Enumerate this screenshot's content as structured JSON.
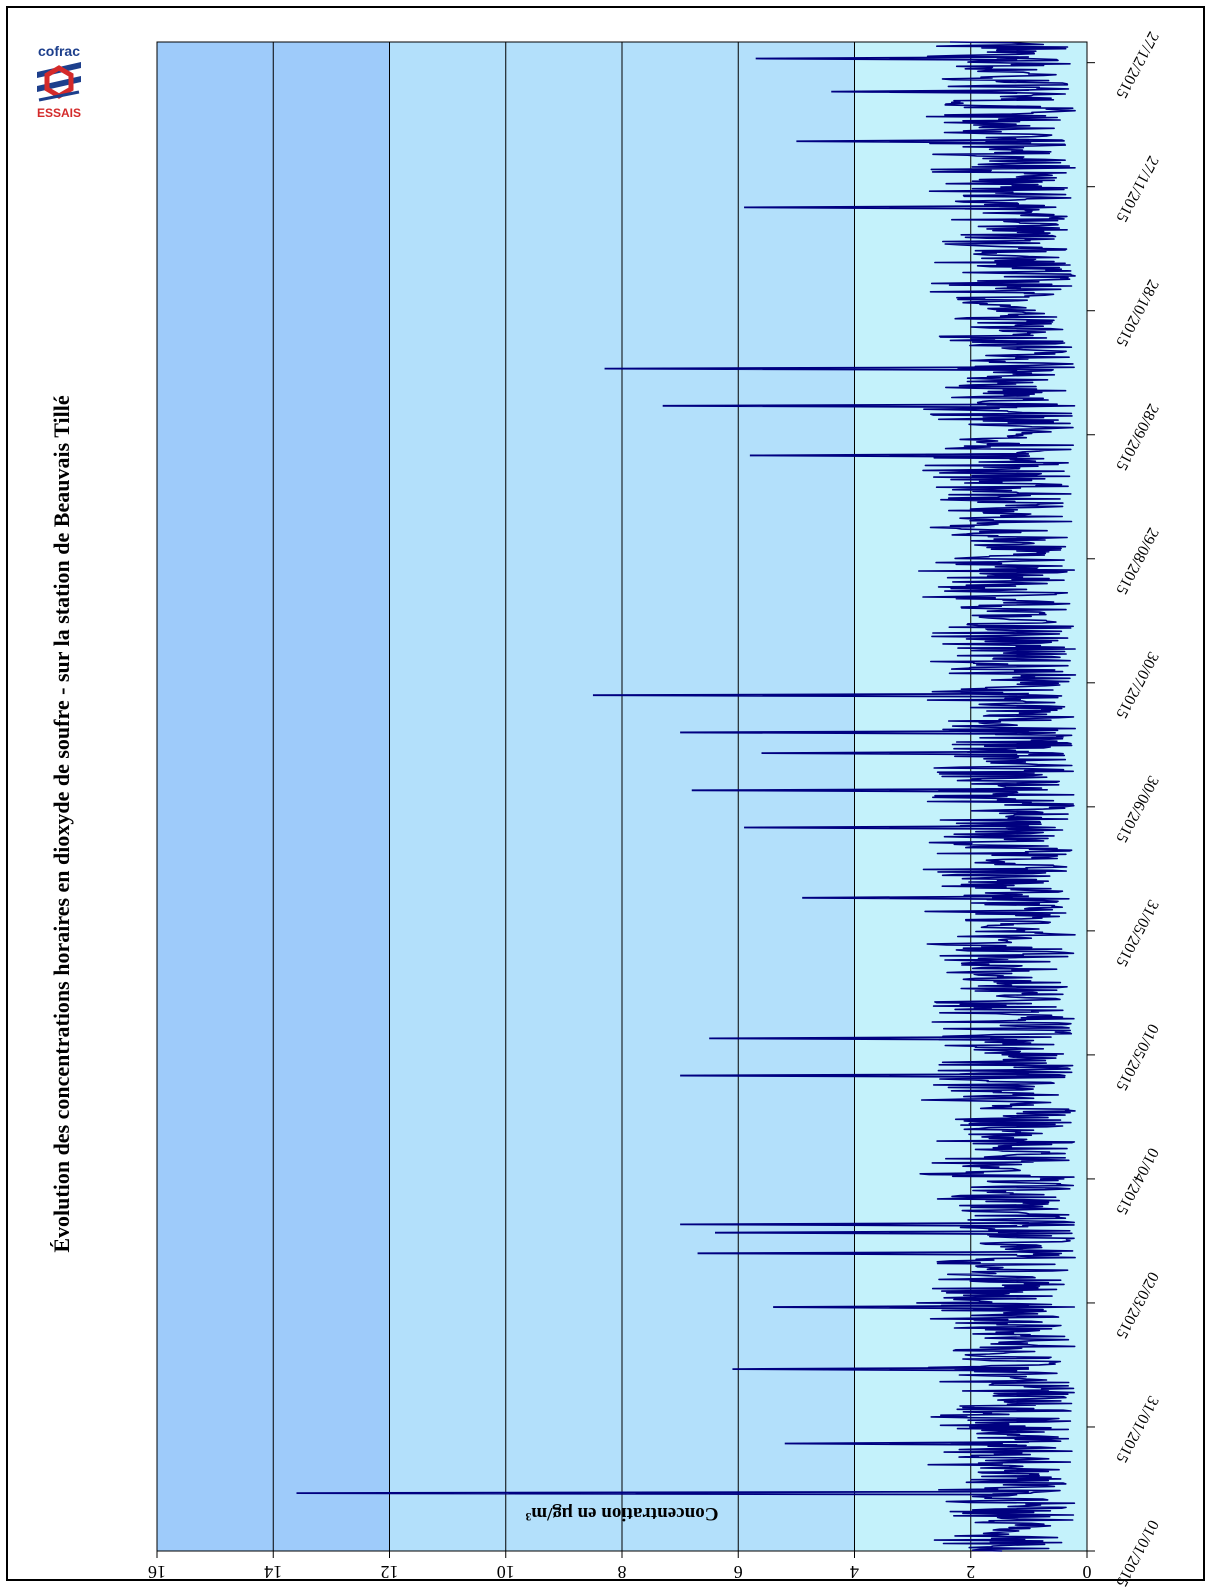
{
  "chart_data": {
    "type": "line",
    "title": "Évolution des concentrations horaires en dioxyde de soufre - sur la station de Beauvais Tillé",
    "ylabel": "Concentration en µg/m³",
    "xlabel": "",
    "ylim": [
      0,
      16
    ],
    "yticks": [
      0,
      2,
      4,
      6,
      8,
      10,
      12,
      14,
      16
    ],
    "xlim": [
      "2015-01-01",
      "2016-01-01"
    ],
    "x_tick_labels": [
      "01/01/2015",
      "31/01/2015",
      "02/03/2015",
      "01/04/2015",
      "01/05/2015",
      "31/05/2015",
      "30/06/2015",
      "30/07/2015",
      "29/08/2015",
      "28/09/2015",
      "28/10/2015",
      "27/11/2015",
      "27/12/2015"
    ],
    "x_tick_days": [
      0,
      30,
      60,
      90,
      120,
      150,
      180,
      210,
      240,
      270,
      300,
      330,
      360
    ],
    "grid": true,
    "legend": "none",
    "colors": {
      "line": "#000080",
      "band_high": "#9ecbfa",
      "band_mid": "#b3e0fb",
      "band_low": "#c4f2fb",
      "gridline": "#000000"
    },
    "series": [
      {
        "name": "",
        "frequency": "hourly",
        "baseline_range": [
          0,
          3
        ],
        "peaks": [
          {
            "date": "2015-01-15",
            "value": 13.6
          },
          {
            "date": "2015-01-27",
            "value": 5.2
          },
          {
            "date": "2015-02-14",
            "value": 6.1
          },
          {
            "date": "2015-03-01",
            "value": 5.4
          },
          {
            "date": "2015-03-14",
            "value": 6.7
          },
          {
            "date": "2015-03-21",
            "value": 7.0
          },
          {
            "date": "2015-03-19",
            "value": 6.4
          },
          {
            "date": "2015-04-26",
            "value": 7.0
          },
          {
            "date": "2015-05-05",
            "value": 6.5
          },
          {
            "date": "2015-06-08",
            "value": 4.9
          },
          {
            "date": "2015-06-25",
            "value": 5.9
          },
          {
            "date": "2015-07-04",
            "value": 6.8
          },
          {
            "date": "2015-07-13",
            "value": 5.6
          },
          {
            "date": "2015-07-18",
            "value": 7.0
          },
          {
            "date": "2015-07-27",
            "value": 8.5
          },
          {
            "date": "2015-09-23",
            "value": 5.8
          },
          {
            "date": "2015-10-05",
            "value": 7.3
          },
          {
            "date": "2015-10-14",
            "value": 8.3
          },
          {
            "date": "2015-11-22",
            "value": 5.9
          },
          {
            "date": "2015-12-08",
            "value": 5.0
          },
          {
            "date": "2015-12-20",
            "value": 4.4
          },
          {
            "date": "2015-12-28",
            "value": 5.7
          }
        ]
      }
    ]
  }
}
